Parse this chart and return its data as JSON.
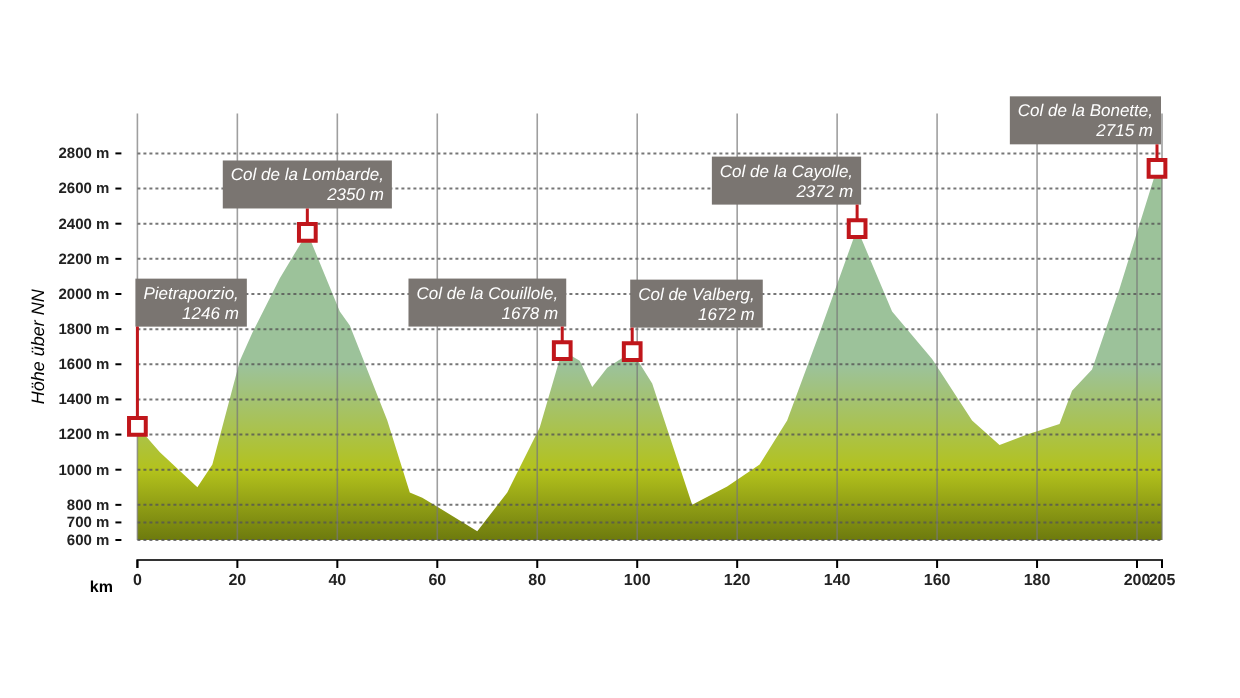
{
  "chart_data": {
    "type": "area",
    "xlabel": "km",
    "ylabel": "Höhe über NN",
    "xlim": [
      0,
      205
    ],
    "xticks": [
      0,
      20,
      40,
      60,
      80,
      100,
      120,
      140,
      160,
      180,
      200,
      205
    ],
    "ylim": [
      600,
      2800
    ],
    "yticks": [
      {
        "value": 600,
        "label": "600 m"
      },
      {
        "value": 700,
        "label": "700 m"
      },
      {
        "value": 800,
        "label": "800 m"
      },
      {
        "value": 1000,
        "label": "1000 m"
      },
      {
        "value": 1200,
        "label": "1200 m"
      },
      {
        "value": 1400,
        "label": "1400 m"
      },
      {
        "value": 1600,
        "label": "1600 m"
      },
      {
        "value": 1800,
        "label": "1800 m"
      },
      {
        "value": 2000,
        "label": "2000 m"
      },
      {
        "value": 2200,
        "label": "2200 m"
      },
      {
        "value": 2400,
        "label": "2400 m"
      },
      {
        "value": 2600,
        "label": "2600 m"
      },
      {
        "value": 2800,
        "label": "2800 m"
      }
    ],
    "grid": true,
    "series": [
      {
        "type": "area",
        "color": "#9cc29a",
        "x": [
          0,
          4.5,
          12,
          15,
          20.5,
          23,
          28.5,
          34,
          40.5,
          42.5,
          50,
          54.5,
          57,
          60.5,
          68,
          74,
          80.5,
          85,
          88.5,
          91,
          94,
          99,
          103,
          111,
          118,
          124.5,
          130,
          136.5,
          144,
          151,
          159,
          167,
          172.5,
          178,
          184.5,
          187,
          191,
          196.5,
          204,
          205
        ],
        "values": [
          1246,
          1100,
          900,
          1030,
          1620,
          1780,
          2090,
          2350,
          1900,
          1820,
          1280,
          870,
          840,
          780,
          650,
          870,
          1240,
          1678,
          1620,
          1470,
          1580,
          1672,
          1490,
          800,
          905,
          1030,
          1280,
          1780,
          2372,
          1900,
          1630,
          1280,
          1140,
          1200,
          1260,
          1450,
          1570,
          2030,
          2715,
          2715
        ]
      },
      {
        "type": "scatter",
        "color": "#c0161b",
        "marker": "square",
        "x": [
          0,
          34,
          85,
          99,
          144,
          204
        ],
        "values": [
          1246,
          2350,
          1678,
          1672,
          2372,
          2715
        ]
      }
    ],
    "annotations": [
      {
        "text": "Pietraporzio,\n1246 m",
        "x": 0,
        "y": 1246
      },
      {
        "text": "Col de la Lombarde,\n2350 m",
        "x": 34,
        "y": 2350
      },
      {
        "text": "Col de la Couillole,\n1678 m",
        "x": 85,
        "y": 1678
      },
      {
        "text": "Col de Valberg,\n1672 m",
        "x": 99,
        "y": 1672
      },
      {
        "text": "Col de la Cayolle,\n2372 m",
        "x": 144,
        "y": 2372
      },
      {
        "text": "Col de la Bonette,\n2715 m",
        "x": 204,
        "y": 2715
      }
    ]
  }
}
